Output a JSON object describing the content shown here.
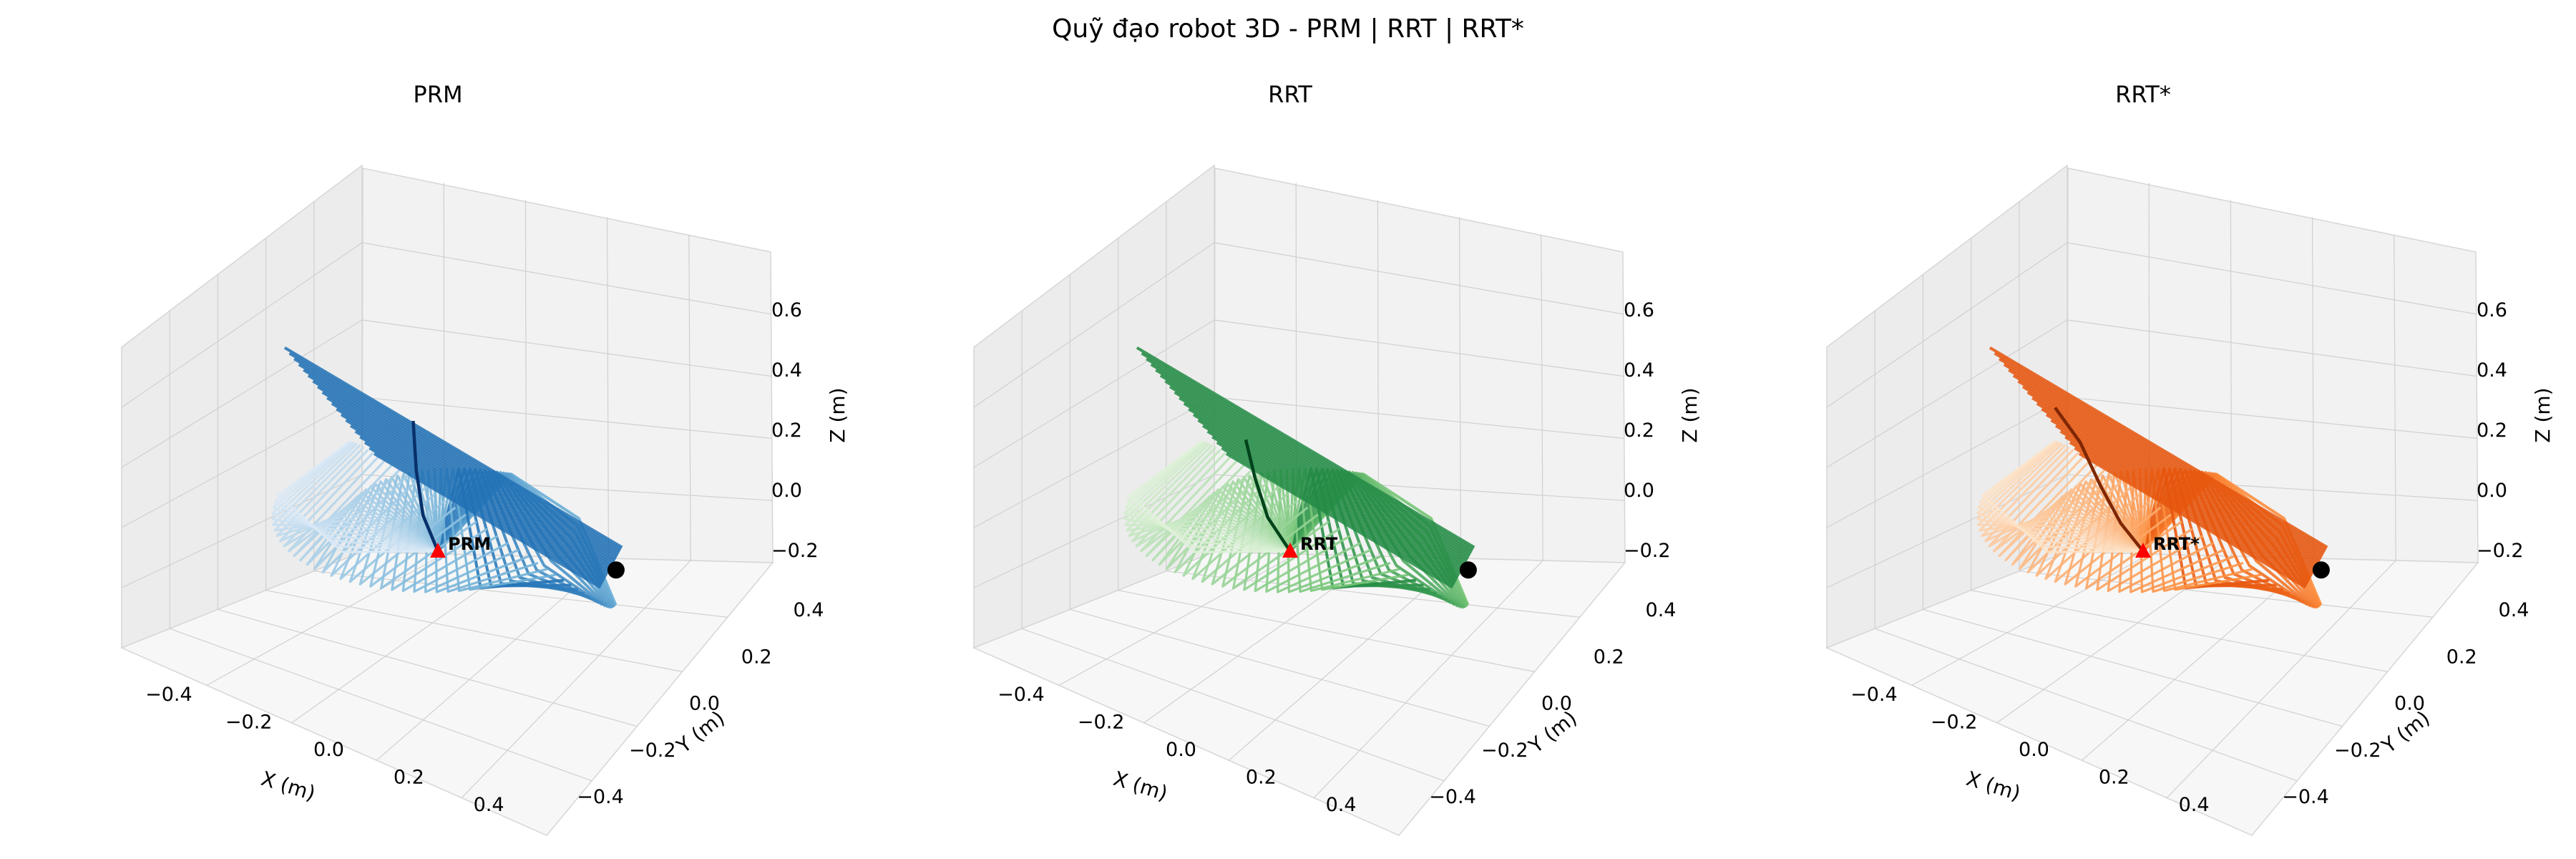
{
  "figure": {
    "title": "Quỹ đạo robot 3D - PRM | RRT | RRT*"
  },
  "chart_data": [
    {
      "type": "line",
      "projection": "3d",
      "title": "PRM",
      "xlabel": "X (m)",
      "ylabel": "Y (m)",
      "zlabel": "Z (m)",
      "xlim": [
        -0.5,
        0.5
      ],
      "ylim": [
        -0.5,
        0.5
      ],
      "zlim": [
        -0.25,
        0.7
      ],
      "xticks": [
        "−0.4",
        "−0.2",
        "0.0",
        "0.2",
        "0.4"
      ],
      "yticks": [
        "−0.4",
        "−0.2",
        "0.0",
        "0.2",
        "0.4"
      ],
      "zticks": [
        "−0.2",
        "0.0",
        "0.2",
        "0.4",
        "0.6"
      ],
      "grid": true,
      "colormap": "Blues",
      "colors": {
        "light": "#dbe9f6",
        "mid": "#6baed6",
        "dark": "#2171b5",
        "path": "#08306b"
      },
      "series": [
        {
          "label": "PRM",
          "start": {
            "x": 0.0,
            "y": 0.0,
            "z": 0.0
          },
          "goal": {
            "x": 0.32,
            "y": 0.25,
            "z": 0.0
          },
          "end_effector_path": [
            [
              0.0,
              0.0,
              0.0
            ],
            [
              -0.04,
              0.0,
              0.1
            ],
            [
              -0.09,
              0.05,
              0.2
            ],
            [
              -0.13,
              0.1,
              0.32
            ]
          ]
        }
      ]
    },
    {
      "type": "line",
      "projection": "3d",
      "title": "RRT",
      "xlabel": "X (m)",
      "ylabel": "Y (m)",
      "zlabel": "Z (m)",
      "xlim": [
        -0.5,
        0.5
      ],
      "ylim": [
        -0.5,
        0.5
      ],
      "zlim": [
        -0.25,
        0.7
      ],
      "xticks": [
        "−0.4",
        "−0.2",
        "0.0",
        "0.2",
        "0.4"
      ],
      "yticks": [
        "−0.4",
        "−0.2",
        "0.0",
        "0.2",
        "0.4"
      ],
      "zticks": [
        "−0.2",
        "0.0",
        "0.2",
        "0.4",
        "0.6"
      ],
      "grid": true,
      "colormap": "Greens",
      "colors": {
        "light": "#dff2d9",
        "mid": "#74c476",
        "dark": "#238b45",
        "path": "#00441b"
      },
      "series": [
        {
          "label": "RRT",
          "start": {
            "x": 0.0,
            "y": 0.0,
            "z": 0.0
          },
          "goal": {
            "x": 0.32,
            "y": 0.25,
            "z": 0.0
          },
          "end_effector_path": [
            [
              0.0,
              0.0,
              0.0
            ],
            [
              -0.06,
              0.0,
              0.08
            ],
            [
              -0.12,
              0.04,
              0.16
            ],
            [
              -0.17,
              0.08,
              0.24
            ]
          ]
        }
      ]
    },
    {
      "type": "line",
      "projection": "3d",
      "title": "RRT*",
      "xlabel": "X (m)",
      "ylabel": "Y (m)",
      "zlabel": "Z (m)",
      "xlim": [
        -0.5,
        0.5
      ],
      "ylim": [
        -0.5,
        0.5
      ],
      "zlim": [
        -0.25,
        0.7
      ],
      "xticks": [
        "−0.4",
        "−0.2",
        "0.0",
        "0.2",
        "0.4"
      ],
      "yticks": [
        "−0.4",
        "−0.2",
        "0.0",
        "0.2",
        "0.4"
      ],
      "zticks": [
        "−0.2",
        "0.0",
        "0.2",
        "0.4",
        "0.6"
      ],
      "grid": true,
      "colormap": "Oranges",
      "colors": {
        "light": "#fde3c8",
        "mid": "#fd8d3c",
        "dark": "#e6550d",
        "path": "#7f2704"
      },
      "series": [
        {
          "label": "RRT*",
          "start": {
            "x": 0.0,
            "y": 0.0,
            "z": 0.0
          },
          "goal": {
            "x": 0.32,
            "y": 0.25,
            "z": 0.0
          },
          "end_effector_path": [
            [
              0.0,
              0.0,
              0.0
            ],
            [
              -0.06,
              0.0,
              0.06
            ],
            [
              -0.14,
              0.04,
              0.12
            ],
            [
              -0.22,
              0.08,
              0.2
            ],
            [
              -0.3,
              0.1,
              0.26
            ]
          ]
        }
      ]
    }
  ]
}
